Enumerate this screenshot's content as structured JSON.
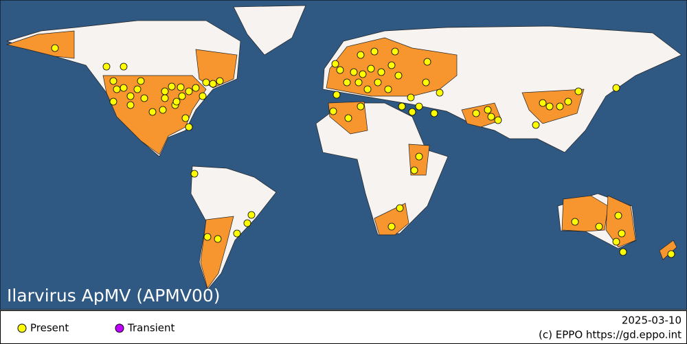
{
  "map": {
    "title": "Ilarvirus ApMV (APMV00)"
  },
  "legend": {
    "items": [
      "Present",
      "Transient"
    ]
  },
  "footer": {
    "date": "2025-03-10",
    "credit": "(c) EPPO https://gd.eppo.int"
  }
}
